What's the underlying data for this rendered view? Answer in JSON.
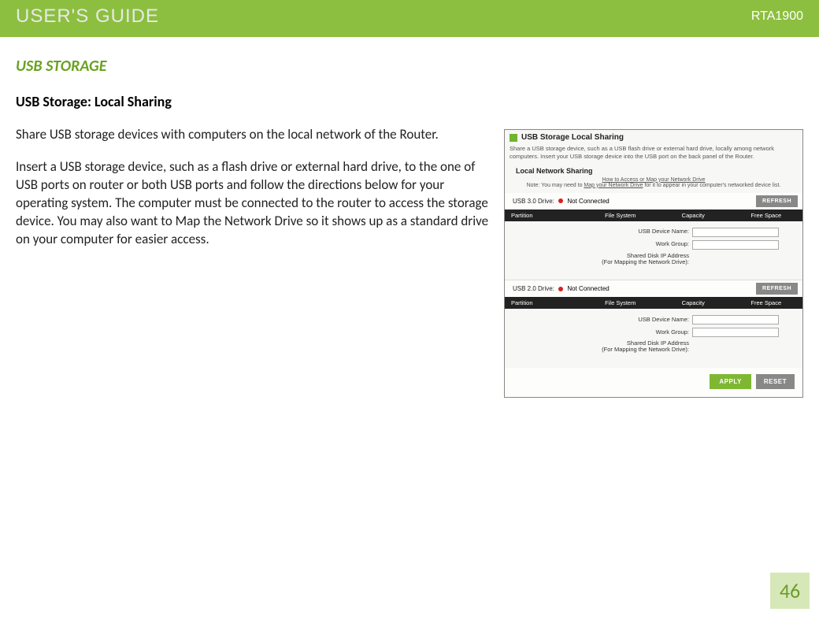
{
  "header": {
    "title": "USER'S GUIDE",
    "model": "RTA1900",
    "bar_color": "#8cbf3f"
  },
  "section": {
    "heading": "USB STORAGE",
    "subheading": "USB Storage: Local Sharing",
    "para1": "Share USB storage devices with computers on the local network of the Router.",
    "para2": "Insert a USB storage device, such as a flash drive or external hard drive, to the one of USB ports on router or both USB ports and follow the directions below for your operating system.  The computer must be connected to the router to access the storage device.  You may also want to Map the Network Drive so it shows up as a standard drive on your computer for easier access."
  },
  "panel": {
    "title": "USB Storage Local Sharing",
    "desc": "Share a USB storage device, such as a USB flash drive or external hard drive, locally among network computers. Insert your USB storage device into the USB port on the back panel of the Router.",
    "section_label": "Local Network Sharing",
    "link_line1": "How to Access or Map your Network Drive",
    "link_line2_prefix": "Note: You may need to ",
    "link_line2_link": "Map your Network Drive",
    "link_line2_suffix": " for it to appear in your computer's networked device list.",
    "usb30_label": "USB 3.0 Drive:",
    "usb20_label": "USB 2.0 Drive:",
    "not_connected": "Not Connected",
    "refresh_label": "REFRESH",
    "table_headers": [
      "Partition",
      "File System",
      "Capacity",
      "Free Space"
    ],
    "field_usb_device": "USB Device Name:",
    "field_workgroup": "Work Group:",
    "field_ip_line1": "Shared Disk IP Address",
    "field_ip_line2": "(For Mapping the Network Drive):",
    "apply_label": "APPLY",
    "reset_label": "RESET"
  },
  "page_number": "46"
}
